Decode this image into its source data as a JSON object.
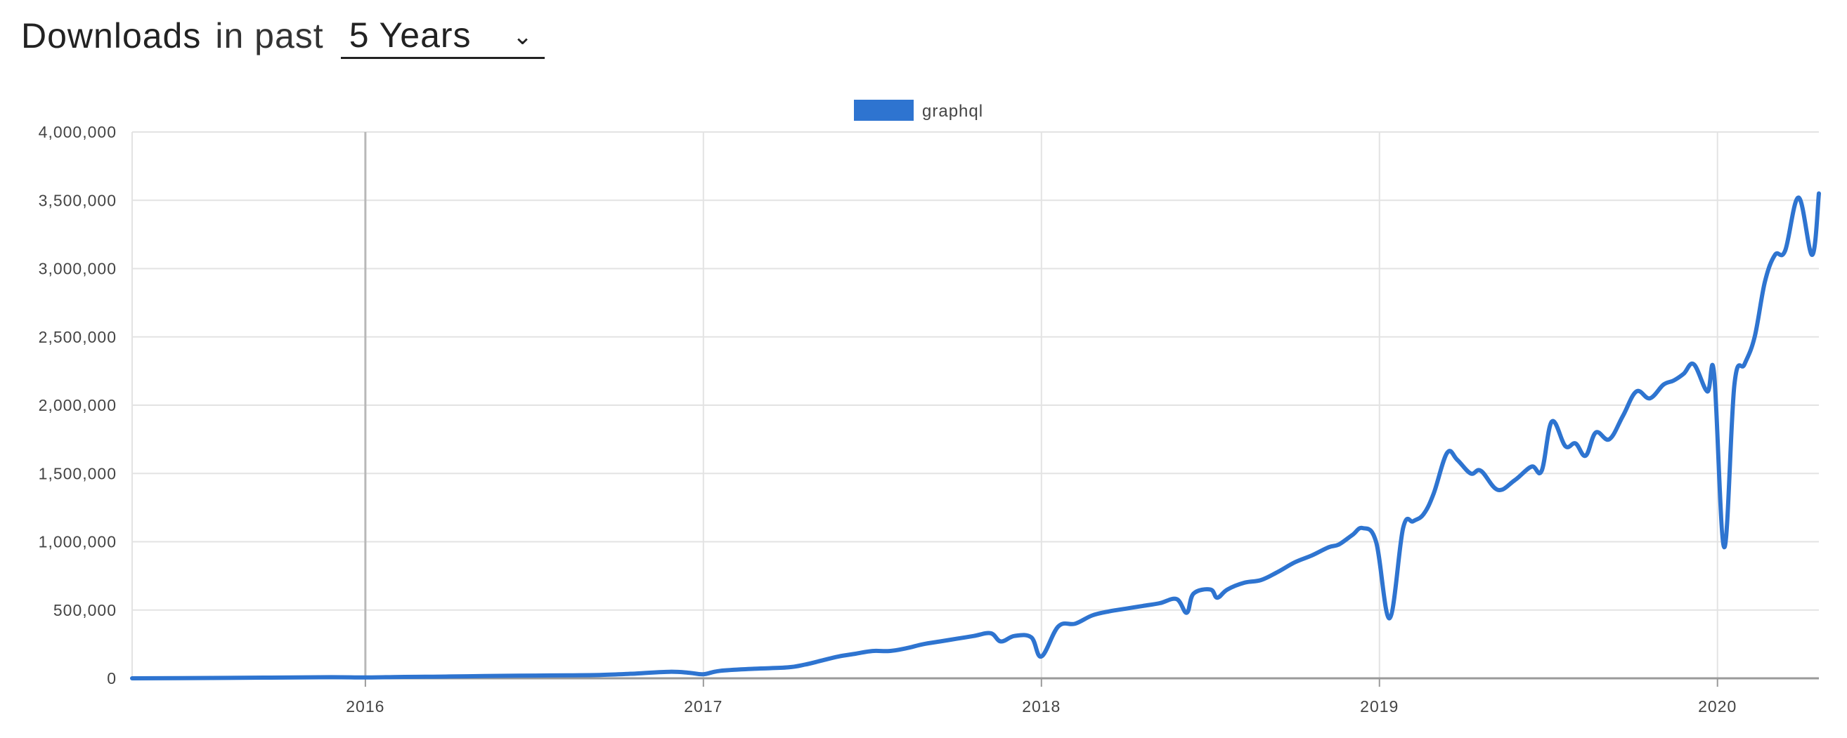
{
  "header": {
    "title": "Downloads",
    "in_past": "in past",
    "period_value": "5 Years",
    "period_icon": "chevron-down-icon"
  },
  "colors": {
    "series": "#2e74d0",
    "grid": "#e3e3e3",
    "axis": "#9a9a9a",
    "text": "#444444"
  },
  "chart_data": {
    "type": "line",
    "title": "",
    "xlabel": "",
    "ylabel": "",
    "legend": {
      "placement": "top-center",
      "entries": [
        "graphql"
      ]
    },
    "ylim": [
      0,
      4000000
    ],
    "y_ticks": [
      0,
      500000,
      1000000,
      1500000,
      2000000,
      2500000,
      3000000,
      3500000,
      4000000
    ],
    "y_tick_labels": [
      "0",
      "500,000",
      "1,000,000",
      "1,500,000",
      "2,000,000",
      "2,500,000",
      "3,000,000",
      "3,500,000",
      "4,000,000"
    ],
    "xlim": [
      2015.31,
      2020.3
    ],
    "x_ticks": [
      2016,
      2017,
      2018,
      2019,
      2020
    ],
    "x_tick_labels": [
      "2016",
      "2017",
      "2018",
      "2019",
      "2020"
    ],
    "grid": true,
    "series": [
      {
        "name": "graphql",
        "color": "#2e74d0",
        "x": [
          2015.31,
          2015.5,
          2015.7,
          2015.9,
          2016.0,
          2016.1,
          2016.2,
          2016.3,
          2016.4,
          2016.5,
          2016.6,
          2016.7,
          2016.8,
          2016.9,
          2016.96,
          2017.0,
          2017.05,
          2017.15,
          2017.25,
          2017.3,
          2017.35,
          2017.4,
          2017.45,
          2017.5,
          2017.55,
          2017.6,
          2017.65,
          2017.7,
          2017.75,
          2017.8,
          2017.85,
          2017.88,
          2017.92,
          2017.97,
          2018.0,
          2018.05,
          2018.1,
          2018.15,
          2018.2,
          2018.25,
          2018.3,
          2018.35,
          2018.4,
          2018.43,
          2018.45,
          2018.5,
          2018.52,
          2018.55,
          2018.6,
          2018.65,
          2018.7,
          2018.75,
          2018.8,
          2018.85,
          2018.88,
          2018.92,
          2018.95,
          2018.99,
          2019.03,
          2019.07,
          2019.1,
          2019.13,
          2019.16,
          2019.2,
          2019.23,
          2019.27,
          2019.3,
          2019.35,
          2019.4,
          2019.45,
          2019.48,
          2019.51,
          2019.55,
          2019.58,
          2019.61,
          2019.64,
          2019.68,
          2019.72,
          2019.76,
          2019.8,
          2019.84,
          2019.87,
          2019.9,
          2019.93,
          2019.97,
          2019.99,
          2020.02,
          2020.05,
          2020.08,
          2020.11,
          2020.14,
          2020.17,
          2020.2,
          2020.24,
          2020.28,
          2020.3
        ],
        "values": [
          0,
          2000,
          5000,
          8000,
          6000,
          10000,
          12000,
          15000,
          18000,
          20000,
          22000,
          25000,
          35000,
          48000,
          40000,
          30000,
          55000,
          70000,
          80000,
          100000,
          130000,
          160000,
          180000,
          200000,
          200000,
          220000,
          250000,
          270000,
          290000,
          310000,
          330000,
          270000,
          310000,
          300000,
          160000,
          380000,
          400000,
          460000,
          490000,
          510000,
          530000,
          550000,
          580000,
          480000,
          620000,
          650000,
          590000,
          650000,
          700000,
          720000,
          780000,
          850000,
          900000,
          960000,
          980000,
          1050000,
          1100000,
          1000000,
          440000,
          1100000,
          1150000,
          1200000,
          1350000,
          1650000,
          1600000,
          1500000,
          1520000,
          1380000,
          1450000,
          1550000,
          1520000,
          1880000,
          1700000,
          1720000,
          1630000,
          1800000,
          1750000,
          1920000,
          2100000,
          2050000,
          2150000,
          2180000,
          2230000,
          2300000,
          2100000,
          2230000,
          960000,
          2150000,
          2300000,
          2500000,
          2900000,
          3100000,
          3130000,
          3520000,
          3100000,
          3550000
        ]
      }
    ]
  }
}
